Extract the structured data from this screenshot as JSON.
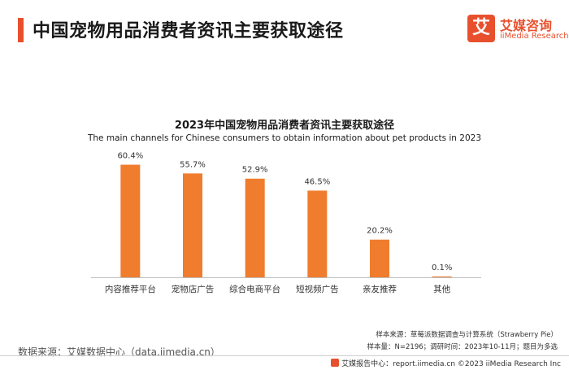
{
  "header": {
    "title": "中国宠物用品消费者资讯主要获取途径",
    "logo": {
      "mark": "艾",
      "name_cn": "艾媒咨询",
      "name_en": "iiMedia Research"
    }
  },
  "chart_data": {
    "type": "bar",
    "title": "2023年中国宠物用品消费者资讯主要获取途径",
    "subtitle": "The main channels for Chinese consumers to obtain information about pet products in 2023",
    "categories": [
      "内容推荐平台",
      "宠物店广告",
      "综合电商平台",
      "短视频广告",
      "亲友推荐",
      "其他"
    ],
    "values": [
      60.4,
      55.7,
      52.9,
      46.5,
      20.2,
      0.1
    ],
    "value_labels": [
      "60.4%",
      "55.7%",
      "52.9%",
      "46.5%",
      "20.2%",
      "0.1%"
    ],
    "unit": "%",
    "ylim": [
      0,
      65
    ],
    "bar_color": "#f07c2e",
    "grid": false
  },
  "notes": {
    "data_source": "数据来源：艾媒数据中心（data.iimedia.cn）",
    "sample_source": "样本来源：草莓派数据调查与计算系统（Strawberry Pie）",
    "sample_size": "样本量：N=2196；调研时间：2023年10-11月；题目为多选",
    "footer": "艾媒报告中心：report.iimedia.cn  ©2023  iiMedia Research  Inc"
  },
  "colors": {
    "accent": "#e8502d",
    "bar": "#f07c2e"
  }
}
